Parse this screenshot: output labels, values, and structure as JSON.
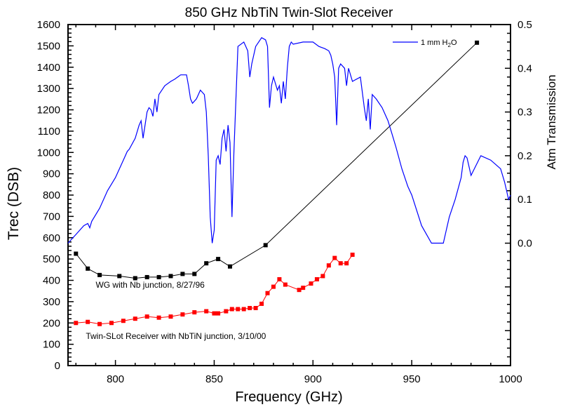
{
  "chart_data": {
    "type": "line",
    "title": "850 GHz NbTiN Twin-Slot Receiver",
    "xlabel": "Frequency (GHz)",
    "ylabel": "Trec (DSB)",
    "y2label": "Atm Transmission",
    "xlim": [
      776,
      1000
    ],
    "ylim": [
      0,
      1600
    ],
    "y2lim": [
      -0.28,
      0.5
    ],
    "x_ticks": [
      800,
      850,
      900,
      950,
      1000
    ],
    "y_ticks": [
      0,
      100,
      200,
      300,
      400,
      500,
      600,
      700,
      800,
      900,
      1000,
      1100,
      1200,
      1300,
      1400,
      1500,
      1600
    ],
    "y2_ticks": [
      "0.0",
      "0.1",
      "0.2",
      "0.3",
      "0.4",
      "0.5"
    ],
    "y2_tick_values": [
      0.0,
      0.1,
      0.2,
      0.3,
      0.4,
      0.5
    ],
    "grid": false,
    "legend": {
      "position": "top-right",
      "entries": [
        {
          "label": "1 mm H",
          "subscript": "2",
          "suffix": "O",
          "color": "#0000ff"
        }
      ]
    },
    "annotations": [
      {
        "text": "WG with Nb junction, 8/27/96",
        "x": 790,
        "y": 365
      },
      {
        "text": "Twin-SLot Receiver with NbTiN junction, 3/10/00",
        "x": 785,
        "y": 125
      }
    ],
    "series": [
      {
        "name": "WG with Nb junction, 8/27/96",
        "axis": "left",
        "color": "#000000",
        "marker": "square",
        "x": [
          780,
          786,
          792,
          802,
          810,
          816,
          822,
          828,
          834,
          840,
          846,
          852,
          858,
          876,
          983
        ],
        "y": [
          525,
          455,
          425,
          420,
          410,
          415,
          415,
          420,
          430,
          430,
          480,
          500,
          465,
          565,
          1515
        ]
      },
      {
        "name": "Twin-SLot Receiver with NbTiN junction, 3/10/00",
        "axis": "left",
        "color": "#ff0000",
        "marker": "square",
        "x": [
          780,
          786,
          792,
          798,
          804,
          810,
          816,
          822,
          828,
          834,
          840,
          846,
          850,
          852,
          856,
          859,
          862,
          865,
          868,
          871,
          874,
          877,
          880,
          883,
          886,
          893,
          895,
          899,
          902,
          905,
          908,
          911,
          914,
          917,
          920
        ],
        "y": [
          200,
          205,
          195,
          200,
          210,
          220,
          230,
          225,
          230,
          240,
          250,
          255,
          245,
          245,
          255,
          265,
          265,
          265,
          270,
          270,
          290,
          340,
          370,
          405,
          380,
          355,
          365,
          385,
          405,
          420,
          470,
          505,
          480,
          480,
          520
        ]
      },
      {
        "name": "1 mm H2O",
        "axis": "right",
        "color": "#0000ff",
        "marker": "none",
        "x": [
          776,
          780,
          784,
          786,
          787,
          788,
          792,
          796,
          800,
          804,
          806,
          807,
          810,
          812,
          813,
          814,
          816,
          817,
          818,
          819,
          820,
          821,
          822,
          825,
          828,
          830,
          833,
          836,
          837,
          838,
          839,
          841,
          842,
          843,
          844,
          845,
          846,
          847,
          848,
          849,
          850,
          851,
          852,
          853,
          854,
          855,
          856,
          857,
          858,
          859,
          860,
          862,
          865,
          867,
          868,
          869,
          871,
          874,
          876,
          877,
          878,
          879,
          880,
          882,
          883,
          884,
          885,
          886,
          887,
          888,
          889,
          890,
          895,
          900,
          903,
          906,
          908,
          909,
          910,
          911,
          912,
          913,
          914,
          916,
          917,
          918,
          920,
          924,
          926,
          927,
          928,
          929,
          930,
          932,
          935,
          938,
          940,
          942,
          945,
          948,
          950,
          955,
          960,
          963,
          966,
          969,
          972,
          975,
          976,
          977,
          978,
          980,
          985,
          990,
          995,
          997,
          998,
          999,
          1000
        ],
        "y": [
          0.0,
          0.02,
          0.04,
          0.045,
          0.035,
          0.05,
          0.08,
          0.12,
          0.15,
          0.19,
          0.21,
          0.215,
          0.24,
          0.27,
          0.28,
          0.24,
          0.3,
          0.31,
          0.305,
          0.29,
          0.33,
          0.3,
          0.34,
          0.36,
          0.37,
          0.375,
          0.385,
          0.385,
          0.36,
          0.33,
          0.32,
          0.33,
          0.34,
          0.35,
          0.345,
          0.34,
          0.3,
          0.2,
          0.06,
          0.0,
          0.03,
          0.19,
          0.2,
          0.18,
          0.24,
          0.26,
          0.21,
          0.27,
          0.23,
          0.06,
          0.21,
          0.45,
          0.46,
          0.44,
          0.38,
          0.41,
          0.45,
          0.47,
          0.465,
          0.45,
          0.31,
          0.36,
          0.38,
          0.35,
          0.36,
          0.32,
          0.37,
          0.33,
          0.4,
          0.45,
          0.46,
          0.455,
          0.46,
          0.46,
          0.45,
          0.445,
          0.44,
          0.43,
          0.41,
          0.38,
          0.27,
          0.4,
          0.41,
          0.4,
          0.36,
          0.4,
          0.37,
          0.38,
          0.31,
          0.28,
          0.33,
          0.26,
          0.34,
          0.33,
          0.31,
          0.28,
          0.25,
          0.22,
          0.17,
          0.13,
          0.11,
          0.04,
          0.0,
          0.0,
          0.0,
          0.06,
          0.1,
          0.15,
          0.185,
          0.2,
          0.195,
          0.155,
          0.2,
          0.19,
          0.17,
          0.14,
          0.12,
          0.1,
          0.11
        ]
      }
    ]
  }
}
